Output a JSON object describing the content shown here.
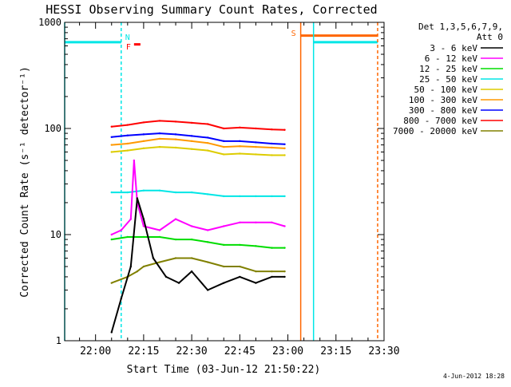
{
  "chart_data": {
    "type": "line",
    "title": "HESSI Observing Summary Count Rates, Corrected",
    "xlabel": "Start Time (03-Jun-12 21:50:22)",
    "ylabel": "Corrected Count Rate (s⁻¹ detector⁻¹)",
    "x_scale": "time",
    "y_scale": "log",
    "xlim": [
      "21:50:22",
      "23:30:00"
    ],
    "ylim": [
      1,
      1000
    ],
    "x_ticks": [
      "22:00",
      "22:15",
      "22:30",
      "22:45",
      "23:00",
      "23:15",
      "23:30"
    ],
    "y_ticks": [
      "1",
      "10",
      "100",
      "1000"
    ],
    "grid": false,
    "legend_position": "top-right outside",
    "legend_header": [
      "Det 1,3,5,6,7,9,",
      "Att 0"
    ],
    "annotations": {
      "N": {
        "label": "N",
        "time": "22:08"
      },
      "F": {
        "label": "F",
        "time": "22:11"
      },
      "S": {
        "label": "S",
        "time": "23:04"
      }
    },
    "date_stamp": "4-Jun-2012 18:28",
    "series": [
      {
        "name": "3 - 6 keV",
        "color": "#000000",
        "x": [
          "22:05",
          "22:08",
          "22:11",
          "22:13",
          "22:15",
          "22:18",
          "22:22",
          "22:26",
          "22:30",
          "22:35",
          "22:40",
          "22:45",
          "22:50",
          "22:55",
          "22:59"
        ],
        "y": [
          1.2,
          2.5,
          5,
          22,
          14,
          6,
          4,
          3.5,
          4.5,
          3,
          3.5,
          4,
          3.5,
          4,
          4
        ]
      },
      {
        "name": "6 - 12 keV",
        "color": "#ff00ff",
        "x": [
          "22:05",
          "22:08",
          "22:11",
          "22:12",
          "22:13",
          "22:15",
          "22:20",
          "22:25",
          "22:30",
          "22:35",
          "22:40",
          "22:45",
          "22:50",
          "22:55",
          "22:59"
        ],
        "y": [
          10,
          11,
          14,
          50,
          20,
          12,
          11,
          14,
          12,
          11,
          12,
          13,
          13,
          13,
          12
        ]
      },
      {
        "name": "12 - 25 keV",
        "color": "#00dd00",
        "x": [
          "22:05",
          "22:10",
          "22:15",
          "22:20",
          "22:25",
          "22:30",
          "22:35",
          "22:40",
          "22:45",
          "22:50",
          "22:55",
          "22:59"
        ],
        "y": [
          9,
          9.5,
          9.5,
          9.5,
          9,
          9,
          8.5,
          8,
          8,
          7.8,
          7.5,
          7.5
        ]
      },
      {
        "name": "25 - 50 keV",
        "color": "#00e6e6",
        "x": [
          "22:05",
          "22:10",
          "22:15",
          "22:20",
          "22:25",
          "22:30",
          "22:35",
          "22:40",
          "22:45",
          "22:50",
          "22:55",
          "22:59"
        ],
        "y": [
          25,
          25,
          26,
          26,
          25,
          25,
          24,
          23,
          23,
          23,
          23,
          23
        ]
      },
      {
        "name": "50 - 100 keV",
        "color": "#ddcc00",
        "x": [
          "22:05",
          "22:10",
          "22:15",
          "22:20",
          "22:25",
          "22:30",
          "22:35",
          "22:40",
          "22:45",
          "22:50",
          "22:55",
          "22:59"
        ],
        "y": [
          60,
          62,
          65,
          67,
          66,
          64,
          62,
          57,
          58,
          57,
          56,
          56
        ]
      },
      {
        "name": "100 - 300 keV",
        "color": "#ff9900",
        "x": [
          "22:05",
          "22:10",
          "22:15",
          "22:20",
          "22:25",
          "22:30",
          "22:35",
          "22:40",
          "22:45",
          "22:50",
          "22:55",
          "22:59"
        ],
        "y": [
          70,
          72,
          76,
          80,
          79,
          76,
          73,
          67,
          68,
          67,
          66,
          65
        ]
      },
      {
        "name": "300 - 800 keV",
        "color": "#0000ff",
        "x": [
          "22:05",
          "22:10",
          "22:15",
          "22:20",
          "22:25",
          "22:30",
          "22:35",
          "22:40",
          "22:45",
          "22:50",
          "22:55",
          "22:59"
        ],
        "y": [
          83,
          86,
          88,
          90,
          88,
          85,
          82,
          76,
          76,
          74,
          72,
          71
        ]
      },
      {
        "name": "800 - 7000 keV",
        "color": "#ff0000",
        "x": [
          "22:05",
          "22:10",
          "22:15",
          "22:20",
          "22:25",
          "22:30",
          "22:35",
          "22:40",
          "22:45",
          "22:50",
          "22:55",
          "22:59"
        ],
        "y": [
          104,
          108,
          114,
          118,
          116,
          113,
          110,
          100,
          102,
          100,
          98,
          97
        ]
      },
      {
        "name": "7000 - 20000 keV",
        "color": "#808000",
        "x": [
          "22:05",
          "22:10",
          "22:13",
          "22:15",
          "22:20",
          "22:25",
          "22:30",
          "22:35",
          "22:40",
          "22:45",
          "22:50",
          "22:55",
          "22:59"
        ],
        "y": [
          3.5,
          4,
          4.5,
          5,
          5.5,
          6,
          6,
          5.5,
          5,
          5,
          4.5,
          4.5,
          4.5
        ]
      }
    ],
    "attenuator_segments": [
      {
        "name": "N",
        "color": "#00e6e6",
        "y": 650,
        "segments": [
          [
            "21:50:22",
            "22:08"
          ],
          [
            "23:08",
            "23:28"
          ]
        ]
      },
      {
        "name": "F",
        "color": "#ff0000",
        "y": 620,
        "segments": [
          [
            "22:12",
            "22:14"
          ]
        ]
      },
      {
        "name": "S",
        "color": "#ff6600",
        "y": 750,
        "segments": [
          [
            "23:04",
            "23:28"
          ]
        ]
      }
    ]
  }
}
